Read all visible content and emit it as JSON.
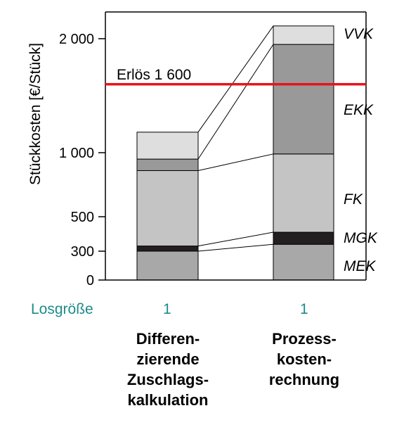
{
  "chart_data": {
    "type": "bar",
    "stacked": true,
    "ylabel": "Stückkosten [€/Stück]",
    "yticks": [
      0,
      300,
      500,
      1000,
      2000
    ],
    "ytick_labels": [
      "0",
      "300",
      "500",
      "1 000",
      "2 000"
    ],
    "ylim": [
      0,
      2200
    ],
    "categories": [
      "Differen-\nzierende\nZuschlags-\nkalkulation",
      "Prozess-\nkosten-\nrechnung"
    ],
    "lot_size_label": "Losgröße",
    "lot_sizes": [
      "1",
      "1"
    ],
    "segments": [
      "MEK",
      "MGK",
      "FK",
      "EKK",
      "VVK"
    ],
    "series": [
      {
        "name": "MEK",
        "values": [
          300,
          340
        ]
      },
      {
        "name": "MGK",
        "values": [
          30,
          70
        ]
      },
      {
        "name": "FK",
        "values": [
          530,
          580
        ]
      },
      {
        "name": "EKK",
        "values": [
          90,
          960
        ]
      },
      {
        "name": "VVK",
        "values": [
          230,
          160
        ]
      }
    ],
    "segment_colors": {
      "MEK": "#a8a8a8",
      "MGK": "#231f20",
      "FK": "#c4c4c4",
      "EKK": "#999999",
      "VVK": "#dedede"
    },
    "reference_line": {
      "label": "Erlös 1 600",
      "value": 1600,
      "color": "#e8141b"
    },
    "grid": false
  }
}
